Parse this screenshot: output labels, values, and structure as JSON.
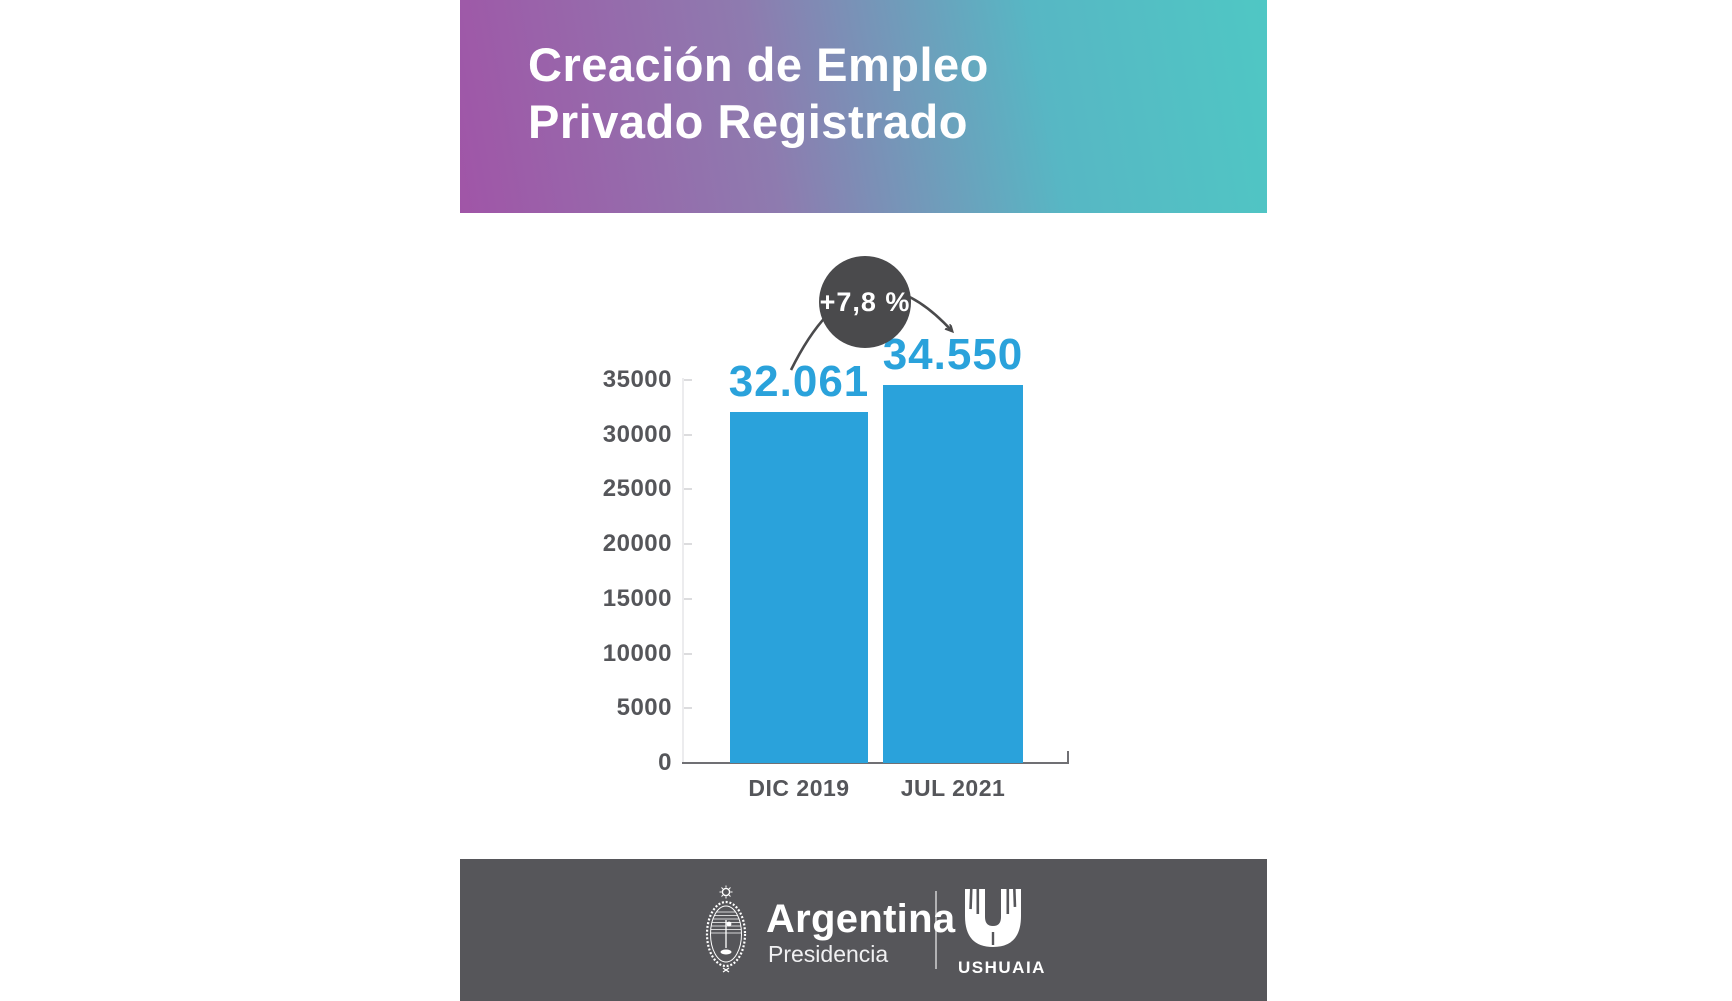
{
  "header": {
    "title_line1": "Creación de Empleo",
    "title_line2": "Privado Registrado"
  },
  "chart_data": {
    "type": "bar",
    "title": "Creación de Empleo Privado Registrado",
    "categories": [
      "DIC 2019",
      "JUL 2021"
    ],
    "values": [
      32061,
      34550
    ],
    "value_labels": [
      "32.061",
      "34.550"
    ],
    "badge_label": "+7,8 %",
    "xlabel": "",
    "ylabel": "",
    "ylim": [
      0,
      35000
    ],
    "yticks": [
      0,
      5000,
      10000,
      15000,
      20000,
      25000,
      30000,
      35000
    ],
    "grid": false,
    "legend_position": "none",
    "bar_color": "#2AA2DB",
    "value_label_color": "#2AA2DB",
    "axis_text_color": "#55565A",
    "badge_color": "#4A4A4C"
  },
  "footer": {
    "argentina_label": "Argentina",
    "presidencia_label": "Presidencia",
    "ushuaia_label": "USHUAIA"
  },
  "icons": {
    "coat_of_arms": "argentina-coat-of-arms",
    "city_logo": "ushuaia-u-logo"
  },
  "colors": {
    "gradient_left": "#A055A7",
    "gradient_right": "#4FC7C4",
    "bar_blue": "#2AA2DB",
    "badge_gray": "#4A4A4C",
    "footer_gray": "#56565A",
    "axis_text": "#55565A",
    "background": "#FFFFFF"
  }
}
